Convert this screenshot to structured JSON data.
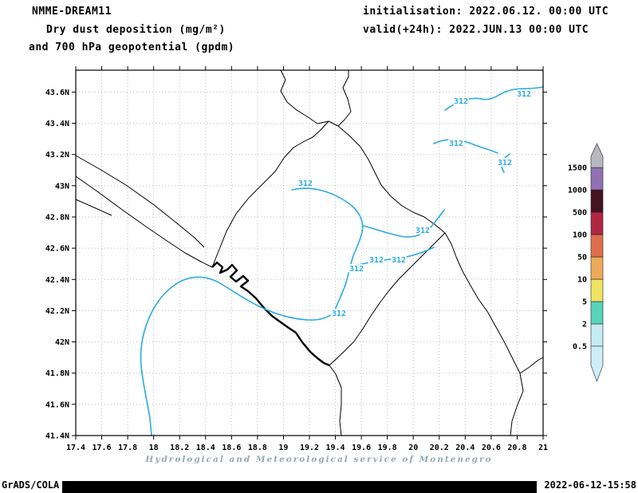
{
  "header": {
    "model": "NMME-DREAM11",
    "title_line1": "Dry dust deposition (mg/m²)",
    "title_line2": "and 700 hPa geopotential (gpdm)",
    "initialisation": "initialisation: 2022.06.12. 00:00 UTC",
    "valid": "valid(+24h): 2022.JUN.13 00:00 UTC"
  },
  "footer": {
    "service_credit": "Hydrological and Meteorological service of Montenegro",
    "generator": "GrADS/COLA",
    "timestamp": "2022-06-12-15:58"
  },
  "chart_data": {
    "type": "heatmap",
    "subtype": "geographic filled-contour map with line contours over Montenegro region",
    "title": "Dry dust deposition (mg/m²) and 700 hPa geopotential (gpdm)",
    "x_axis": {
      "ticks": [
        "17.4",
        "17.6",
        "17.8",
        "18",
        "18.2",
        "18.4",
        "18.6",
        "18.8",
        "19",
        "19.2",
        "19.4",
        "19.6",
        "19.8",
        "20",
        "20.2",
        "20.4",
        "20.6",
        "20.8",
        "21"
      ],
      "range": [
        17.4,
        21
      ]
    },
    "y_axis": {
      "ticks": [
        "43.6N",
        "43.4N",
        "43.2N",
        "43N",
        "42.8N",
        "42.6N",
        "42.4N",
        "42.2N",
        "42N",
        "41.8N",
        "41.6N",
        "41.4N"
      ],
      "range": [
        41.4,
        43.74
      ]
    },
    "grid": "dotted",
    "geopotential_contour": {
      "label": "312",
      "value_gpdm": 312,
      "color": "#2aace0",
      "label_occurrences": 10
    },
    "dust_deposition_shading": "no shaded fill visible (deposition below 0.5 mg/m² across the whole domain)",
    "colorbar": {
      "levels": [
        "0.5",
        "2",
        "5",
        "10",
        "50",
        "100",
        "500",
        "1000",
        "1500"
      ],
      "band_colors_low_to_high": [
        "#cceef4",
        "#c4ecf2",
        "#57d4ba",
        "#f0e561",
        "#edaa5a",
        "#e06e4c",
        "#b02744",
        "#461320",
        "#9170b4",
        "#b8b8c0"
      ]
    }
  }
}
